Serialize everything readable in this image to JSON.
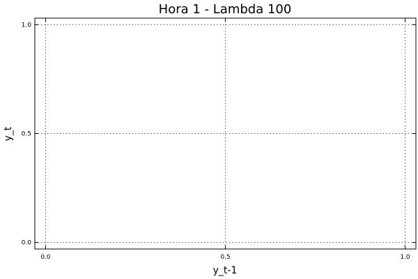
{
  "chart_data": {
    "type": "scatter",
    "title": "Hora 1 - Lambda 100",
    "xlabel": "y_t-1",
    "ylabel": "y_t",
    "xlim": [
      -0.03,
      1.03
    ],
    "ylim": [
      -0.03,
      1.03
    ],
    "x_ticks": [
      0.0,
      0.5,
      1.0
    ],
    "x_tick_labels": [
      "0.0",
      "0.5",
      "1.0"
    ],
    "y_ticks": [
      0.0,
      0.5,
      1.0
    ],
    "y_tick_labels": [
      "0.0",
      "0.5",
      "1.0"
    ],
    "grid": true,
    "series": []
  }
}
